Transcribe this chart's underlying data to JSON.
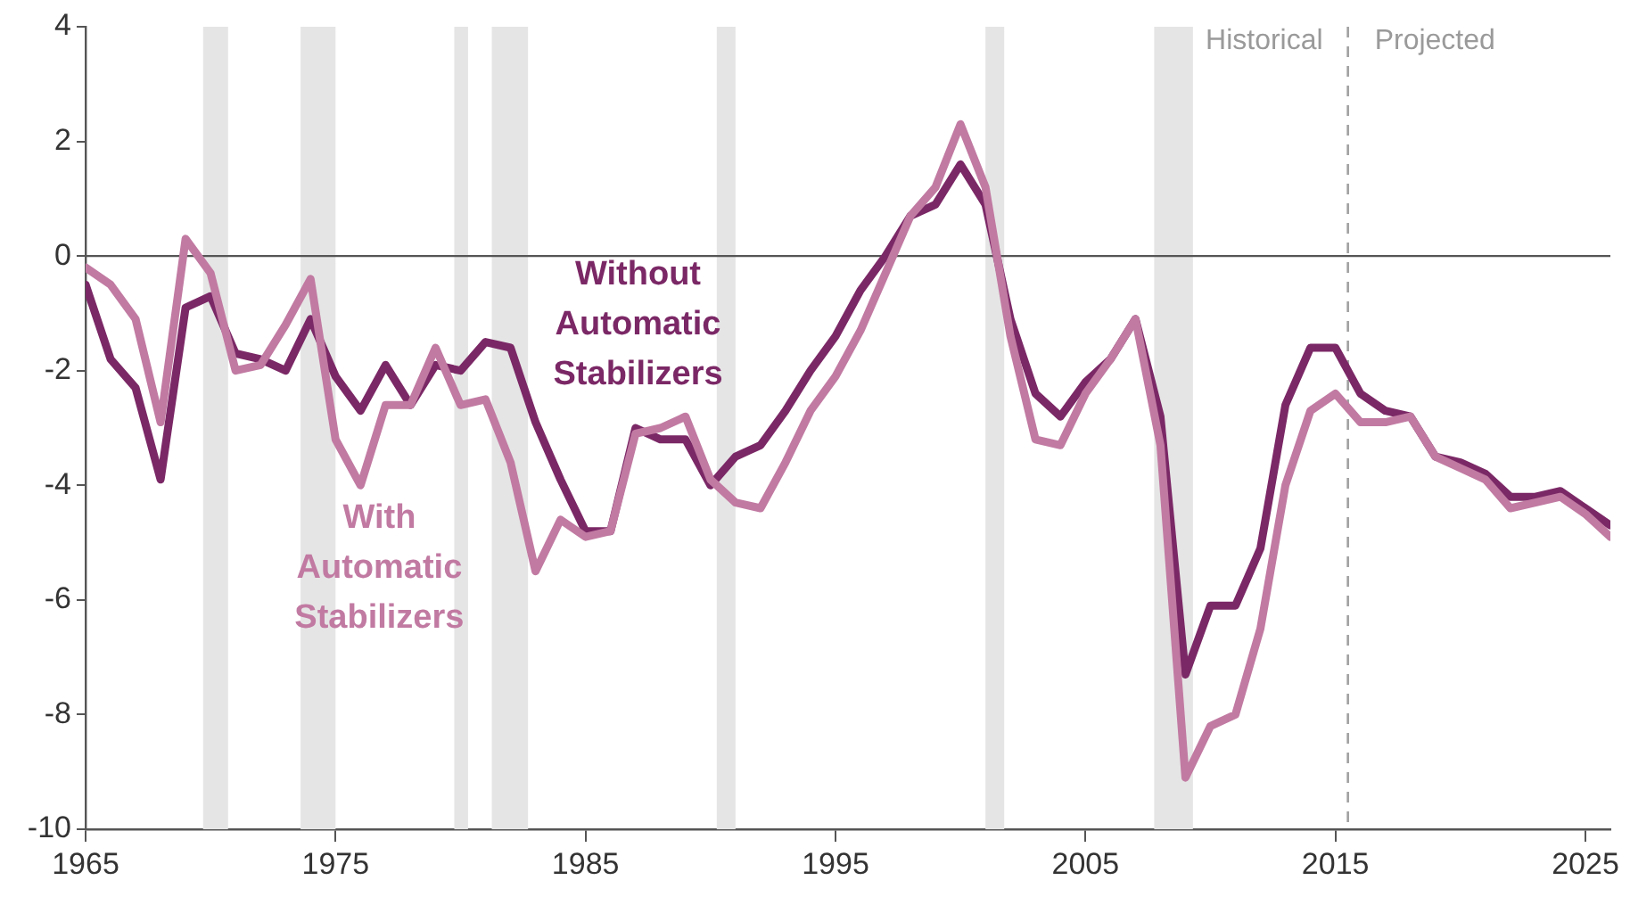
{
  "chart_data": {
    "type": "line",
    "x": [
      1965,
      1966,
      1967,
      1968,
      1969,
      1970,
      1971,
      1972,
      1973,
      1974,
      1975,
      1976,
      1977,
      1978,
      1979,
      1980,
      1981,
      1982,
      1983,
      1984,
      1985,
      1986,
      1987,
      1988,
      1989,
      1990,
      1991,
      1992,
      1993,
      1994,
      1995,
      1996,
      1997,
      1998,
      1999,
      2000,
      2001,
      2002,
      2003,
      2004,
      2005,
      2006,
      2007,
      2008,
      2009,
      2010,
      2011,
      2012,
      2013,
      2014,
      2015,
      2016,
      2017,
      2018,
      2019,
      2020,
      2021,
      2022,
      2023,
      2024,
      2025,
      2026
    ],
    "series": [
      {
        "name": "With Automatic Stabilizers",
        "color": "#c17aa2",
        "values": [
          -0.2,
          -0.5,
          -1.1,
          -2.9,
          0.3,
          -0.3,
          -2.0,
          -1.9,
          -1.2,
          -0.4,
          -3.2,
          -4.0,
          -2.6,
          -2.6,
          -1.6,
          -2.6,
          -2.5,
          -3.6,
          -5.5,
          -4.6,
          -4.9,
          -4.8,
          -3.1,
          -3.0,
          -2.8,
          -3.9,
          -4.3,
          -4.4,
          -3.6,
          -2.7,
          -2.1,
          -1.3,
          -0.3,
          0.7,
          1.2,
          2.3,
          1.2,
          -1.4,
          -3.2,
          -3.3,
          -2.4,
          -1.8,
          -1.1,
          -3.3,
          -9.1,
          -8.2,
          -8.0,
          -6.5,
          -4.0,
          -2.7,
          -2.4,
          -2.9,
          -2.9,
          -2.8,
          -3.5,
          -3.7,
          -3.9,
          -4.4,
          -4.3,
          -4.2,
          -4.5,
          -4.9
        ]
      },
      {
        "name": "Without Automatic Stabilizers",
        "color": "#7b2866",
        "values": [
          -0.5,
          -1.8,
          -2.3,
          -3.9,
          -0.9,
          -0.7,
          -1.7,
          -1.8,
          -2.0,
          -1.1,
          -2.1,
          -2.7,
          -1.9,
          -2.6,
          -1.9,
          -2.0,
          -1.5,
          -1.6,
          -2.9,
          -3.9,
          -4.8,
          -4.8,
          -3.0,
          -3.2,
          -3.2,
          -4.0,
          -3.5,
          -3.3,
          -2.7,
          -2.0,
          -1.4,
          -0.6,
          0.0,
          0.7,
          0.9,
          1.6,
          0.9,
          -1.1,
          -2.4,
          -2.8,
          -2.2,
          -1.8,
          -1.1,
          -2.8,
          -7.3,
          -6.1,
          -6.1,
          -5.1,
          -2.6,
          -1.6,
          -1.6,
          -2.4,
          -2.7,
          -2.8,
          -3.5,
          -3.6,
          -3.8,
          -4.2,
          -4.2,
          -4.1,
          -4.4,
          -4.7
        ]
      }
    ],
    "xlim": [
      1965,
      2026
    ],
    "xticks": [
      1965,
      1975,
      1985,
      1995,
      2005,
      2015,
      2025
    ],
    "ylim": [
      -10,
      4
    ],
    "yticks": [
      -10,
      -8,
      -6,
      -4,
      -2,
      0,
      2,
      4
    ],
    "grid": false,
    "legend": false,
    "bands": [
      {
        "axis": "x",
        "from": 1969.7,
        "to": 1970.7,
        "color": "#e5e5e5"
      },
      {
        "axis": "x",
        "from": 1973.6,
        "to": 1975.0,
        "color": "#e5e5e5"
      },
      {
        "axis": "x",
        "from": 1979.75,
        "to": 1980.3,
        "color": "#e5e5e5"
      },
      {
        "axis": "x",
        "from": 1981.25,
        "to": 1982.7,
        "color": "#e5e5e5"
      },
      {
        "axis": "x",
        "from": 1990.25,
        "to": 1991.0,
        "color": "#e5e5e5"
      },
      {
        "axis": "x",
        "from": 2001.0,
        "to": 2001.75,
        "color": "#e5e5e5"
      },
      {
        "axis": "x",
        "from": 2007.75,
        "to": 2009.3,
        "color": "#e5e5e5"
      }
    ],
    "ref_lines": [
      {
        "axis": "y",
        "value": 0,
        "color": "#555555",
        "line_style": "solid"
      },
      {
        "axis": "x",
        "value": 2015.5,
        "color": "#a0a0a0",
        "line_style": "dashed"
      }
    ],
    "annotations": [
      "Historical",
      "Projected"
    ]
  }
}
